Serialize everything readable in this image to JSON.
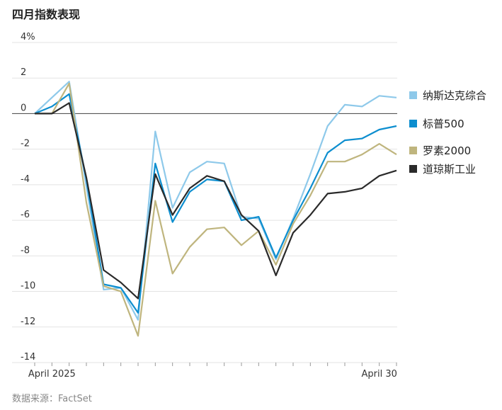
{
  "chart_data": {
    "type": "line",
    "title": "四月指数表现",
    "source": "数据来源：FactSet",
    "y_unit": "%",
    "ylim": [
      -14,
      4
    ],
    "y_ticks": [
      4,
      2,
      0,
      -2,
      -4,
      -6,
      -8,
      -10,
      -12,
      -14
    ],
    "y_tick_labels": [
      "4%",
      "2",
      "0",
      "-2",
      "-4",
      "-6",
      "-8",
      "-10",
      "-12",
      "-14"
    ],
    "x_labels": [
      "April 2025",
      "April 30"
    ],
    "x": [
      "2025-03-31",
      "2025-04-01",
      "2025-04-02",
      "2025-04-03",
      "2025-04-04",
      "2025-04-07",
      "2025-04-08",
      "2025-04-09",
      "2025-04-10",
      "2025-04-11",
      "2025-04-14",
      "2025-04-15",
      "2025-04-16",
      "2025-04-17",
      "2025-04-21",
      "2025-04-22",
      "2025-04-23",
      "2025-04-24",
      "2025-04-25",
      "2025-04-28",
      "2025-04-29",
      "2025-04-30"
    ],
    "grid": true,
    "legend_position": "right",
    "series": [
      {
        "name": "纳斯达克综合",
        "color": "#8ec9ea",
        "values": [
          0,
          0.9,
          1.8,
          -4.1,
          -9.9,
          -9.8,
          -11.6,
          -1.0,
          -5.3,
          -3.3,
          -2.7,
          -2.8,
          -5.8,
          -5.9,
          -8.2,
          -5.9,
          -3.4,
          -0.7,
          0.5,
          0.4,
          1.0,
          0.9
        ]
      },
      {
        "name": "标普500",
        "color": "#0d8ecf",
        "values": [
          0,
          0.4,
          1.1,
          -3.7,
          -9.6,
          -9.8,
          -11.2,
          -2.8,
          -6.1,
          -4.4,
          -3.7,
          -3.8,
          -6.0,
          -5.8,
          -8.1,
          -6.0,
          -4.2,
          -2.2,
          -1.5,
          -1.4,
          -0.9,
          -0.7
        ]
      },
      {
        "name": "罗素2000",
        "color": "#bfb57e",
        "values": [
          0,
          0.0,
          1.7,
          -5.0,
          -9.7,
          -10.0,
          -12.5,
          -4.9,
          -9.0,
          -7.5,
          -6.5,
          -6.4,
          -7.4,
          -6.6,
          -8.5,
          -6.2,
          -4.6,
          -2.7,
          -2.7,
          -2.3,
          -1.7,
          -2.3
        ]
      },
      {
        "name": "道琼斯工业",
        "color": "#2a2a2a",
        "values": [
          0,
          0.0,
          0.6,
          -3.6,
          -8.8,
          -9.5,
          -10.4,
          -3.4,
          -5.7,
          -4.2,
          -3.5,
          -3.8,
          -5.7,
          -6.6,
          -9.1,
          -6.7,
          -5.7,
          -4.5,
          -4.4,
          -4.2,
          -3.5,
          -3.2
        ]
      }
    ]
  }
}
